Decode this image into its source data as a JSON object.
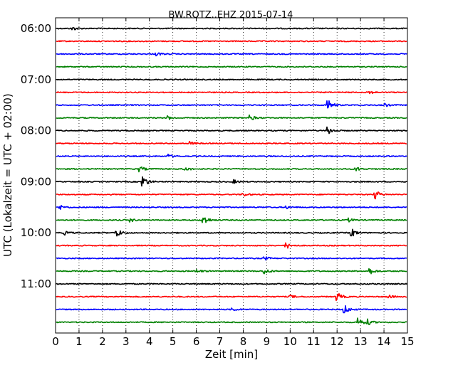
{
  "chart_data": {
    "type": "line",
    "title": "BW.ROTZ..EHZ 2015-07-14",
    "xlabel": "Zeit  [min]",
    "ylabel": "UTC (Lokalzeit = UTC + 02:00)",
    "xlim": [
      0,
      15
    ],
    "x_ticks": [
      "0",
      "1",
      "2",
      "3",
      "4",
      "5",
      "6",
      "7",
      "8",
      "9",
      "10",
      "11",
      "12",
      "13",
      "14",
      "15"
    ],
    "y_ticks": [
      "06:00",
      "07:00",
      "08:00",
      "09:00",
      "10:00",
      "11:00"
    ],
    "trace_interval_minutes": 15,
    "first_trace": "06:00",
    "last_trace": "11:45",
    "grid": "vertical dotted at each minute",
    "colors": [
      "#000000",
      "#ff0000",
      "#0000ff",
      "#008000"
    ],
    "traces": [
      {
        "time": "06:00",
        "color": "#000000",
        "events": [
          {
            "min": 0.7,
            "amp": 0.25
          }
        ]
      },
      {
        "time": "06:15",
        "color": "#ff0000",
        "events": []
      },
      {
        "time": "06:30",
        "color": "#0000ff",
        "events": [
          {
            "min": 4.3,
            "amp": 0.2
          }
        ]
      },
      {
        "time": "06:45",
        "color": "#008000",
        "events": []
      },
      {
        "time": "07:00",
        "color": "#000000",
        "events": []
      },
      {
        "time": "07:15",
        "color": "#ff0000",
        "events": [
          {
            "min": 13.3,
            "amp": 0.25
          }
        ]
      },
      {
        "time": "07:30",
        "color": "#0000ff",
        "events": [
          {
            "min": 11.6,
            "amp": 0.7
          },
          {
            "min": 14.0,
            "amp": 0.2
          }
        ]
      },
      {
        "time": "07:45",
        "color": "#008000",
        "events": [
          {
            "min": 4.8,
            "amp": 0.2
          },
          {
            "min": 8.3,
            "amp": 0.3
          }
        ]
      },
      {
        "time": "08:00",
        "color": "#000000",
        "events": [
          {
            "min": 11.6,
            "amp": 0.45
          }
        ]
      },
      {
        "time": "08:15",
        "color": "#ff0000",
        "events": [
          {
            "min": 5.7,
            "amp": 0.2
          }
        ]
      },
      {
        "time": "08:30",
        "color": "#0000ff",
        "events": [
          {
            "min": 4.8,
            "amp": 0.2
          }
        ]
      },
      {
        "time": "08:45",
        "color": "#008000",
        "events": [
          {
            "min": 3.6,
            "amp": 0.3
          },
          {
            "min": 5.5,
            "amp": 0.25
          },
          {
            "min": 12.8,
            "amp": 0.25
          }
        ]
      },
      {
        "time": "09:00",
        "color": "#000000",
        "events": [
          {
            "min": 3.7,
            "amp": 0.8
          },
          {
            "min": 7.6,
            "amp": 0.2
          }
        ]
      },
      {
        "time": "09:15",
        "color": "#ff0000",
        "events": [
          {
            "min": 13.6,
            "amp": 0.6
          },
          {
            "min": 8.0,
            "amp": 0.2
          }
        ]
      },
      {
        "time": "09:30",
        "color": "#0000ff",
        "events": [
          {
            "min": 0.2,
            "amp": 0.25
          },
          {
            "min": 9.8,
            "amp": 0.2
          }
        ]
      },
      {
        "time": "09:45",
        "color": "#008000",
        "events": [
          {
            "min": 6.3,
            "amp": 0.6
          },
          {
            "min": 3.2,
            "amp": 0.2
          },
          {
            "min": 12.5,
            "amp": 0.2
          }
        ]
      },
      {
        "time": "10:00",
        "color": "#000000",
        "events": [
          {
            "min": 2.6,
            "amp": 0.5
          },
          {
            "min": 12.6,
            "amp": 0.55
          },
          {
            "min": 0.4,
            "amp": 0.2
          }
        ]
      },
      {
        "time": "10:15",
        "color": "#ff0000",
        "events": [
          {
            "min": 9.8,
            "amp": 0.45
          }
        ]
      },
      {
        "time": "10:30",
        "color": "#0000ff",
        "events": [
          {
            "min": 8.9,
            "amp": 0.2
          }
        ]
      },
      {
        "time": "10:45",
        "color": "#008000",
        "events": [
          {
            "min": 8.9,
            "amp": 0.35
          },
          {
            "min": 13.4,
            "amp": 0.35
          },
          {
            "min": 6.0,
            "amp": 0.2
          }
        ]
      },
      {
        "time": "11:00",
        "color": "#000000",
        "events": []
      },
      {
        "time": "11:15",
        "color": "#ff0000",
        "events": [
          {
            "min": 12.0,
            "amp": 0.5
          },
          {
            "min": 10.0,
            "amp": 0.2
          },
          {
            "min": 14.2,
            "amp": 0.2
          }
        ]
      },
      {
        "time": "11:30",
        "color": "#0000ff",
        "events": [
          {
            "min": 12.3,
            "amp": 0.6
          },
          {
            "min": 7.5,
            "amp": 0.2
          }
        ]
      },
      {
        "time": "11:45",
        "color": "#008000",
        "events": [
          {
            "min": 12.9,
            "amp": 0.6
          },
          {
            "min": 13.3,
            "amp": 0.3
          }
        ]
      }
    ]
  }
}
